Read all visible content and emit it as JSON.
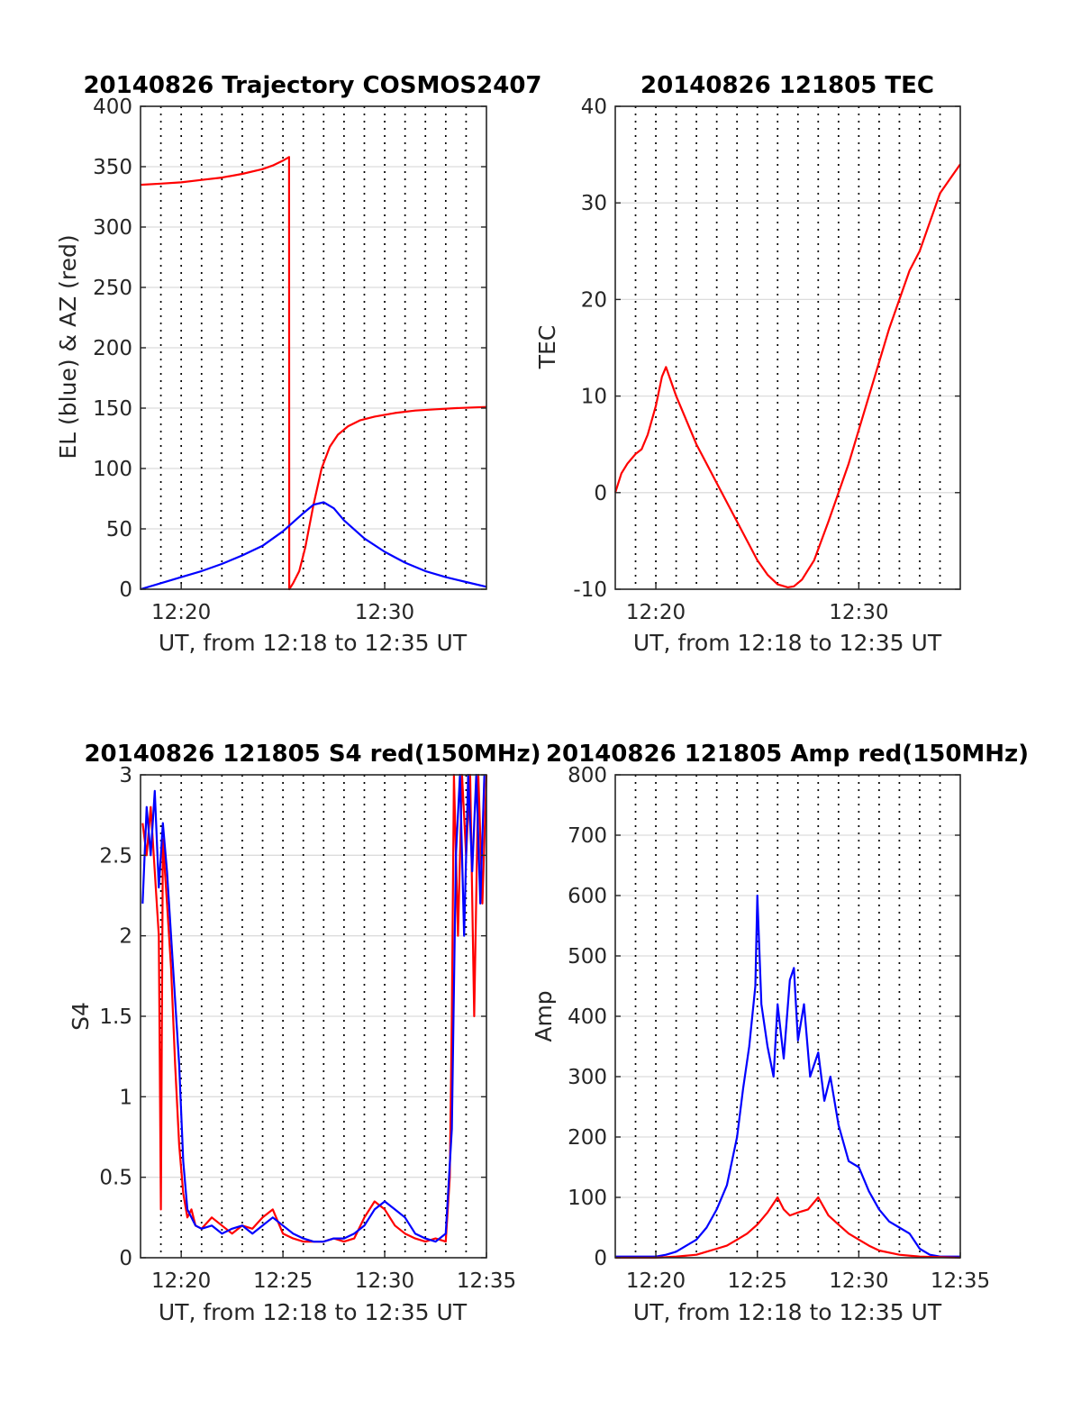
{
  "chart_data": [
    {
      "id": "trajectory",
      "type": "line",
      "title": "20140826 Trajectory COSMOS2407",
      "xlabel": "UT, from 12:18 to 12:35 UT",
      "ylabel": "EL (blue) & AZ (red)",
      "x_unit": "minutes after 12:00 UT",
      "xlim": [
        18,
        35
      ],
      "ylim": [
        0,
        400
      ],
      "xticks": [
        20,
        30
      ],
      "xtick_labels": [
        "12:20",
        "12:30"
      ],
      "yticks": [
        0,
        50,
        100,
        150,
        200,
        250,
        300,
        350,
        400
      ],
      "ytick_labels": [
        "0",
        "50",
        "100",
        "150",
        "200",
        "250",
        "300",
        "350",
        "400"
      ],
      "minute_grid": true,
      "horizontal_grid": true,
      "series": [
        {
          "color": "#ff0000",
          "x": [
            18,
            19,
            20,
            21,
            22,
            23,
            24,
            24.5,
            25,
            25.3,
            25.31,
            25.5,
            25.8,
            26.1,
            26.5,
            26.9,
            27.3,
            27.7,
            28.2,
            28.8,
            29.5,
            30.5,
            31.5,
            32.5,
            33.5,
            35
          ],
          "y": [
            335,
            336,
            337,
            339,
            341,
            344,
            348,
            351,
            355,
            358,
            0,
            5,
            15,
            35,
            70,
            100,
            118,
            128,
            135,
            140,
            143,
            146,
            148,
            149,
            150,
            151
          ]
        },
        {
          "color": "#0000ff",
          "x": [
            18,
            19,
            20,
            21,
            22,
            23,
            24,
            25,
            26,
            26.5,
            27,
            27.5,
            28,
            29,
            30,
            31,
            32,
            33,
            34,
            35
          ],
          "y": [
            0,
            5,
            10,
            15,
            21,
            28,
            36,
            48,
            63,
            70,
            72,
            67,
            57,
            42,
            31,
            22,
            15,
            10,
            6,
            2
          ]
        }
      ]
    },
    {
      "id": "tec",
      "type": "line",
      "title": "20140826 121805 TEC",
      "xlabel": "UT, from 12:18 to 12:35 UT",
      "ylabel": "TEC",
      "x_unit": "minutes after 12:00 UT",
      "xlim": [
        18,
        35
      ],
      "ylim": [
        -10,
        40
      ],
      "xticks": [
        20,
        30
      ],
      "xtick_labels": [
        "12:20",
        "12:30"
      ],
      "yticks": [
        -10,
        0,
        10,
        20,
        30,
        40
      ],
      "ytick_labels": [
        "-10",
        "0",
        "10",
        "20",
        "30",
        "40"
      ],
      "minute_grid": true,
      "horizontal_grid": true,
      "series": [
        {
          "color": "#ff0000",
          "x": [
            18,
            18.3,
            18.6,
            19,
            19.3,
            19.6,
            20,
            20.3,
            20.5,
            21,
            22,
            23,
            24,
            25,
            25.5,
            26,
            26.5,
            26.8,
            27.2,
            27.8,
            28.5,
            29.5,
            30.5,
            31.5,
            32.5,
            33,
            33.5,
            34,
            34.5,
            35
          ],
          "y": [
            0,
            2,
            3,
            4,
            4.5,
            6,
            9,
            12,
            13,
            10,
            5,
            1,
            -3,
            -7,
            -8.5,
            -9.5,
            -9.8,
            -9.7,
            -9,
            -7,
            -3,
            3,
            10,
            17,
            23,
            25,
            28,
            31,
            32.5,
            34
          ]
        }
      ]
    },
    {
      "id": "s4",
      "type": "line",
      "title": "20140826 121805 S4 red(150MHz)",
      "xlabel": "UT, from 12:18 to 12:35 UT",
      "ylabel": "S4",
      "x_unit": "minutes after 12:00 UT",
      "xlim": [
        18,
        35
      ],
      "ylim": [
        0,
        3
      ],
      "xticks": [
        20,
        25,
        30,
        35
      ],
      "xtick_labels": [
        "12:20",
        "12:25",
        "12:30",
        "12:35"
      ],
      "yticks": [
        0,
        0.5,
        1,
        1.5,
        2,
        2.5,
        3
      ],
      "ytick_labels": [
        "0",
        "0.5",
        "1",
        "1.5",
        "2",
        "2.5",
        "3"
      ],
      "minute_grid": true,
      "horizontal_grid": true,
      "series": [
        {
          "color": "#ff0000",
          "x": [
            18.1,
            18.3,
            18.5,
            18.7,
            18.9,
            19.0,
            19.1,
            19.3,
            19.5,
            19.7,
            19.9,
            20.1,
            20.3,
            20.5,
            20.7,
            21,
            21.5,
            22,
            22.5,
            23,
            23.5,
            24,
            24.5,
            25,
            25.5,
            26,
            26.5,
            27,
            27.5,
            28,
            28.5,
            29,
            29.5,
            30,
            30.5,
            31,
            31.5,
            32,
            32.5,
            33,
            33.2,
            33.3,
            33.4,
            33.6,
            33.8,
            34,
            34.2,
            34.4,
            34.6,
            34.8,
            35
          ],
          "y": [
            2.7,
            2.5,
            2.8,
            2.4,
            2.0,
            0.3,
            2.6,
            2.2,
            1.8,
            1.2,
            0.7,
            0.4,
            0.25,
            0.3,
            0.2,
            0.18,
            0.25,
            0.2,
            0.15,
            0.2,
            0.18,
            0.25,
            0.3,
            0.15,
            0.12,
            0.1,
            0.1,
            0.1,
            0.12,
            0.1,
            0.12,
            0.25,
            0.35,
            0.3,
            0.2,
            0.15,
            0.12,
            0.1,
            0.12,
            0.1,
            0.5,
            1.5,
            3.0,
            2.0,
            3.0,
            2.5,
            3.0,
            1.5,
            3.0,
            2.2,
            3.0
          ]
        },
        {
          "color": "#0000ff",
          "x": [
            18.1,
            18.3,
            18.5,
            18.7,
            18.9,
            19.1,
            19.3,
            19.5,
            19.7,
            19.9,
            20.1,
            20.3,
            20.5,
            20.7,
            21,
            21.5,
            22,
            22.5,
            23,
            23.5,
            24,
            24.5,
            25,
            25.5,
            26,
            26.5,
            27,
            27.5,
            28,
            28.5,
            29,
            29.5,
            30,
            30.5,
            31,
            31.5,
            32,
            32.5,
            33,
            33.3,
            33.5,
            33.7,
            33.9,
            34.1,
            34.3,
            34.5,
            34.7,
            34.9
          ],
          "y": [
            2.2,
            2.8,
            2.5,
            2.9,
            2.3,
            2.7,
            2.4,
            2.0,
            1.6,
            1.2,
            0.6,
            0.3,
            0.25,
            0.2,
            0.18,
            0.2,
            0.15,
            0.18,
            0.2,
            0.15,
            0.2,
            0.25,
            0.2,
            0.15,
            0.12,
            0.1,
            0.1,
            0.12,
            0.12,
            0.15,
            0.2,
            0.3,
            0.35,
            0.3,
            0.25,
            0.15,
            0.12,
            0.1,
            0.15,
            0.8,
            2.5,
            3.0,
            2.0,
            3.0,
            2.4,
            3.0,
            2.2,
            3.0
          ]
        }
      ]
    },
    {
      "id": "amp",
      "type": "line",
      "title": "20140826 121805 Amp red(150MHz)",
      "xlabel": "UT, from 12:18 to 12:35 UT",
      "ylabel": "Amp",
      "x_unit": "minutes after 12:00 UT",
      "xlim": [
        18,
        35
      ],
      "ylim": [
        0,
        800
      ],
      "xticks": [
        20,
        25,
        30,
        35
      ],
      "xtick_labels": [
        "12:20",
        "12:25",
        "12:30",
        "12:35"
      ],
      "yticks": [
        0,
        100,
        200,
        300,
        400,
        500,
        600,
        700,
        800
      ],
      "ytick_labels": [
        "0",
        "100",
        "200",
        "300",
        "400",
        "500",
        "600",
        "700",
        "800"
      ],
      "minute_grid": true,
      "horizontal_grid": true,
      "series": [
        {
          "color": "#0000ff",
          "x": [
            18,
            19,
            20,
            20.5,
            21,
            21.5,
            22,
            22.5,
            23,
            23.5,
            24,
            24.3,
            24.6,
            24.9,
            25.0,
            25.2,
            25.5,
            25.8,
            26.0,
            26.3,
            26.6,
            26.8,
            27.0,
            27.3,
            27.6,
            28.0,
            28.3,
            28.6,
            29.0,
            29.5,
            30,
            30.5,
            31,
            31.5,
            32,
            32.5,
            33,
            33.5,
            34,
            35
          ],
          "y": [
            2,
            2,
            2,
            5,
            10,
            20,
            30,
            50,
            80,
            120,
            200,
            280,
            350,
            450,
            600,
            420,
            350,
            300,
            420,
            330,
            460,
            480,
            360,
            420,
            300,
            340,
            260,
            300,
            220,
            160,
            150,
            110,
            80,
            60,
            50,
            40,
            15,
            5,
            2,
            2
          ]
        },
        {
          "color": "#ff0000",
          "x": [
            18,
            20,
            21,
            22,
            22.5,
            23,
            23.5,
            24,
            24.5,
            25,
            25.5,
            26,
            26.3,
            26.6,
            27,
            27.5,
            28,
            28.5,
            29,
            29.5,
            30,
            30.5,
            31,
            32,
            33,
            35
          ],
          "y": [
            0,
            0,
            2,
            5,
            10,
            15,
            20,
            30,
            40,
            55,
            75,
            100,
            80,
            70,
            75,
            80,
            100,
            70,
            55,
            40,
            30,
            20,
            12,
            5,
            2,
            0
          ]
        }
      ]
    }
  ]
}
